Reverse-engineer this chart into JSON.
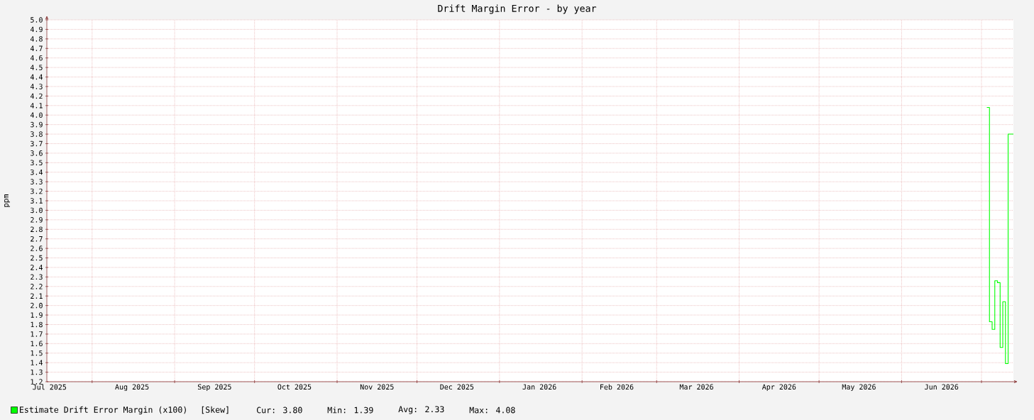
{
  "chart_data": {
    "type": "step",
    "title": "Drift Margin Error - by year",
    "ylabel": "ppm",
    "x": [
      "2026-07-03",
      "2026-07-04",
      "2026-07-05",
      "2026-07-06",
      "2026-07-07",
      "2026-07-08",
      "2026-07-09",
      "2026-07-10",
      "2026-07-11"
    ],
    "series": [
      {
        "name": "Estimate Drift Error Margin (x100)",
        "color": "#00ff00",
        "values": [
          4.08,
          1.83,
          1.75,
          2.26,
          2.24,
          1.56,
          2.04,
          1.39,
          3.8
        ]
      }
    ],
    "xlim": [
      "2025-07-15",
      "2026-07-13"
    ],
    "xticks": [
      {
        "value": "2025-07-16",
        "label": "Jul 2025"
      },
      {
        "value": "2025-08-01",
        "label": null
      },
      {
        "value": "2025-08-16",
        "label": "Aug 2025"
      },
      {
        "value": "2025-09-01",
        "label": null
      },
      {
        "value": "2025-09-16",
        "label": "Sep 2025"
      },
      {
        "value": "2025-10-01",
        "label": null
      },
      {
        "value": "2025-10-16",
        "label": "Oct 2025"
      },
      {
        "value": "2025-11-01",
        "label": null
      },
      {
        "value": "2025-11-16",
        "label": "Nov 2025"
      },
      {
        "value": "2025-12-01",
        "label": null
      },
      {
        "value": "2025-12-16",
        "label": "Dec 2025"
      },
      {
        "value": "2026-01-01",
        "label": null
      },
      {
        "value": "2026-01-16",
        "label": "Jan 2026"
      },
      {
        "value": "2026-02-01",
        "label": null
      },
      {
        "value": "2026-02-14",
        "label": "Feb 2026"
      },
      {
        "value": "2026-03-01",
        "label": null
      },
      {
        "value": "2026-03-16",
        "label": "Mar 2026"
      },
      {
        "value": "2026-04-01",
        "label": null
      },
      {
        "value": "2026-04-16",
        "label": "Apr 2026"
      },
      {
        "value": "2026-05-01",
        "label": null
      },
      {
        "value": "2026-05-16",
        "label": "May 2026"
      },
      {
        "value": "2026-06-01",
        "label": null
      },
      {
        "value": "2026-06-16",
        "label": "Jun 2026"
      },
      {
        "value": "2026-07-01",
        "label": null
      }
    ],
    "ylim": [
      1.2,
      5.0
    ],
    "yticks": [
      1.2,
      1.3,
      1.4,
      1.5,
      1.6,
      1.7,
      1.8,
      1.9,
      {
        "value": 2,
        "label": "2.0"
      },
      2.1,
      2.2,
      2.3,
      2.4,
      2.5,
      2.6,
      2.7,
      2.8,
      2.9,
      {
        "value": 3,
        "label": "3.0"
      },
      3.1,
      3.2,
      3.3,
      3.4,
      3.5,
      3.6,
      3.7,
      3.8,
      3.9,
      {
        "value": 4,
        "label": "4.0"
      },
      4.1,
      4.2,
      4.3,
      4.4,
      4.5,
      4.6,
      4.7,
      4.8,
      4.9,
      {
        "value": 5,
        "label": "5.0"
      }
    ],
    "grid": true,
    "legend": "bottom",
    "annotations": [
      "[Skew]",
      "Cur: 3.80",
      "Min: 1.39",
      "Avg: 2.33",
      "Max: 4.08"
    ]
  }
}
